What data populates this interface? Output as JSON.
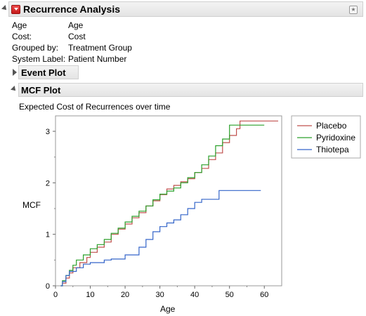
{
  "report": {
    "title": "Recurrence Analysis",
    "info": [
      {
        "label": "Age",
        "value": "Age"
      },
      {
        "label": "Cost:",
        "value": "Cost"
      },
      {
        "label": "Grouped by:",
        "value": "Treatment Group"
      },
      {
        "label": "System Label:",
        "value": "Patient Number"
      }
    ]
  },
  "sections": {
    "event_plot": {
      "title": "Event Plot"
    },
    "mcf_plot": {
      "title": "MCF Plot",
      "description": "Expected Cost of Recurrences over time"
    }
  },
  "chart_data": {
    "type": "line",
    "xlabel": "Age",
    "ylabel": "MCF",
    "xlim": [
      0,
      65
    ],
    "ylim": [
      0,
      3.3
    ],
    "xticks": [
      "0",
      "10",
      "20",
      "30",
      "40",
      "50",
      "60"
    ],
    "yticks": [
      "0",
      "1",
      "2",
      "3"
    ],
    "legend_position": "right",
    "series": [
      {
        "name": "Placebo",
        "color": "#c0504d",
        "points": [
          [
            1.5,
            0
          ],
          [
            2,
            0.05
          ],
          [
            3,
            0.15
          ],
          [
            4,
            0.25
          ],
          [
            5,
            0.35
          ],
          [
            7,
            0.45
          ],
          [
            9,
            0.55
          ],
          [
            10,
            0.65
          ],
          [
            12,
            0.75
          ],
          [
            14,
            0.85
          ],
          [
            16,
            1.0
          ],
          [
            18,
            1.1
          ],
          [
            20,
            1.2
          ],
          [
            22,
            1.32
          ],
          [
            24,
            1.42
          ],
          [
            26,
            1.55
          ],
          [
            28,
            1.65
          ],
          [
            30,
            1.77
          ],
          [
            32,
            1.88
          ],
          [
            34,
            1.95
          ],
          [
            36,
            2.02
          ],
          [
            38,
            2.08
          ],
          [
            40,
            2.2
          ],
          [
            42,
            2.28
          ],
          [
            44,
            2.45
          ],
          [
            46,
            2.58
          ],
          [
            48,
            2.78
          ],
          [
            50,
            2.92
          ],
          [
            52,
            3.05
          ],
          [
            53,
            3.2
          ],
          [
            64,
            3.2
          ]
        ]
      },
      {
        "name": "Pyridoxine",
        "color": "#2aa02a",
        "points": [
          [
            1.5,
            0
          ],
          [
            2,
            0.1
          ],
          [
            3,
            0.2
          ],
          [
            4,
            0.3
          ],
          [
            5,
            0.4
          ],
          [
            6,
            0.5
          ],
          [
            8,
            0.6
          ],
          [
            10,
            0.72
          ],
          [
            12,
            0.8
          ],
          [
            14,
            0.9
          ],
          [
            16,
            1.02
          ],
          [
            18,
            1.12
          ],
          [
            20,
            1.24
          ],
          [
            22,
            1.35
          ],
          [
            24,
            1.45
          ],
          [
            26,
            1.55
          ],
          [
            28,
            1.67
          ],
          [
            30,
            1.78
          ],
          [
            32,
            1.84
          ],
          [
            34,
            1.9
          ],
          [
            36,
            2.0
          ],
          [
            38,
            2.1
          ],
          [
            40,
            2.2
          ],
          [
            42,
            2.35
          ],
          [
            44,
            2.52
          ],
          [
            46,
            2.72
          ],
          [
            48,
            2.85
          ],
          [
            50,
            3.12
          ],
          [
            60,
            3.12
          ]
        ]
      },
      {
        "name": "Thiotepa",
        "color": "#3465c9",
        "points": [
          [
            1.5,
            0
          ],
          [
            2,
            0.08
          ],
          [
            3,
            0.2
          ],
          [
            4,
            0.28
          ],
          [
            6,
            0.35
          ],
          [
            8,
            0.42
          ],
          [
            10,
            0.45
          ],
          [
            14,
            0.5
          ],
          [
            16,
            0.52
          ],
          [
            20,
            0.6
          ],
          [
            24,
            0.75
          ],
          [
            26,
            0.9
          ],
          [
            28,
            1.05
          ],
          [
            30,
            1.15
          ],
          [
            32,
            1.22
          ],
          [
            34,
            1.28
          ],
          [
            36,
            1.38
          ],
          [
            38,
            1.5
          ],
          [
            40,
            1.62
          ],
          [
            42,
            1.68
          ],
          [
            46,
            1.68
          ],
          [
            47,
            1.85
          ],
          [
            59,
            1.85
          ]
        ]
      }
    ]
  }
}
